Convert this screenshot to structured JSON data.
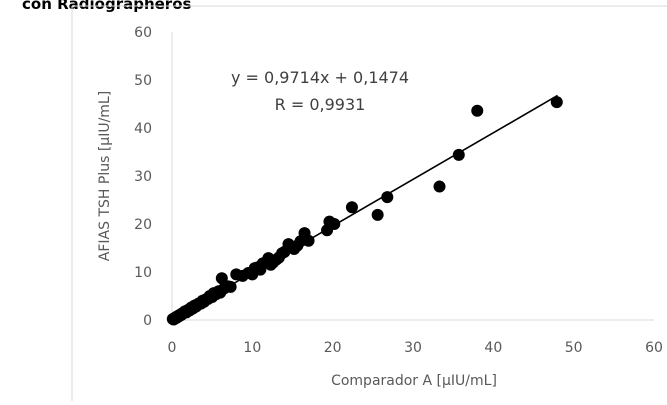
{
  "header_fragment": "con Radiographeros",
  "chart_data": {
    "type": "scatter",
    "title": "",
    "xlabel": "Comparador A [µIU/mL]",
    "ylabel": "AFIAS TSH Plus [µIU/mL]",
    "xlim": [
      0,
      60
    ],
    "ylim": [
      0,
      60
    ],
    "x_ticks": [
      "0",
      "10",
      "20",
      "30",
      "40",
      "50",
      "60"
    ],
    "y_ticks": [
      "0",
      "10",
      "20",
      "30",
      "40",
      "50",
      "60"
    ],
    "grid": false,
    "legend": "none",
    "marker_color": "#000000",
    "trendline": {
      "type": "linear",
      "slope": 0.9714,
      "intercept": 0.1474,
      "x_range": [
        0,
        48
      ],
      "color": "#000000"
    },
    "annotations": {
      "equation": "y = 0,9714x + 0,1474",
      "r_value": "R = 0,9931"
    },
    "points": [
      [
        0.1,
        0.2
      ],
      [
        0.2,
        0.1
      ],
      [
        0.3,
        0.4
      ],
      [
        0.4,
        0.3
      ],
      [
        0.5,
        0.6
      ],
      [
        0.6,
        0.5
      ],
      [
        0.7,
        0.8
      ],
      [
        0.8,
        0.7
      ],
      [
        0.9,
        1.0
      ],
      [
        1.0,
        0.9
      ],
      [
        1.1,
        1.2
      ],
      [
        1.2,
        1.1
      ],
      [
        1.3,
        1.4
      ],
      [
        1.5,
        1.5
      ],
      [
        1.6,
        1.8
      ],
      [
        1.8,
        1.6
      ],
      [
        2.0,
        2.1
      ],
      [
        2.2,
        2.0
      ],
      [
        2.4,
        2.6
      ],
      [
        2.6,
        2.4
      ],
      [
        2.8,
        3.0
      ],
      [
        3.0,
        2.8
      ],
      [
        3.2,
        3.3
      ],
      [
        3.4,
        3.5
      ],
      [
        3.6,
        3.4
      ],
      [
        3.8,
        4.0
      ],
      [
        4.0,
        3.8
      ],
      [
        4.2,
        4.3
      ],
      [
        4.5,
        4.4
      ],
      [
        4.7,
        5.0
      ],
      [
        5.0,
        4.8
      ],
      [
        5.2,
        5.6
      ],
      [
        5.5,
        5.4
      ],
      [
        5.8,
        6.0
      ],
      [
        6.0,
        5.7
      ],
      [
        6.2,
        8.7
      ],
      [
        6.5,
        6.6
      ],
      [
        7.0,
        7.0
      ],
      [
        7.3,
        6.9
      ],
      [
        8.0,
        9.5
      ],
      [
        8.8,
        9.2
      ],
      [
        9.5,
        9.8
      ],
      [
        10.0,
        9.5
      ],
      [
        10.3,
        10.8
      ],
      [
        10.7,
        11.0
      ],
      [
        11.0,
        10.5
      ],
      [
        11.3,
        11.8
      ],
      [
        11.7,
        12.0
      ],
      [
        12.0,
        12.9
      ],
      [
        12.3,
        11.5
      ],
      [
        12.6,
        12.0
      ],
      [
        13.0,
        12.6
      ],
      [
        13.3,
        13.0
      ],
      [
        13.7,
        13.9
      ],
      [
        14.0,
        14.2
      ],
      [
        14.5,
        15.8
      ],
      [
        15.2,
        14.8
      ],
      [
        15.6,
        15.5
      ],
      [
        16.0,
        16.4
      ],
      [
        16.5,
        18.1
      ],
      [
        17.0,
        16.5
      ],
      [
        19.3,
        18.7
      ],
      [
        19.6,
        20.5
      ],
      [
        20.2,
        20.0
      ],
      [
        22.4,
        23.5
      ],
      [
        25.6,
        21.9
      ],
      [
        26.8,
        25.6
      ],
      [
        33.3,
        27.8
      ],
      [
        35.7,
        34.4
      ],
      [
        38.0,
        43.6
      ],
      [
        47.9,
        45.4
      ]
    ]
  }
}
